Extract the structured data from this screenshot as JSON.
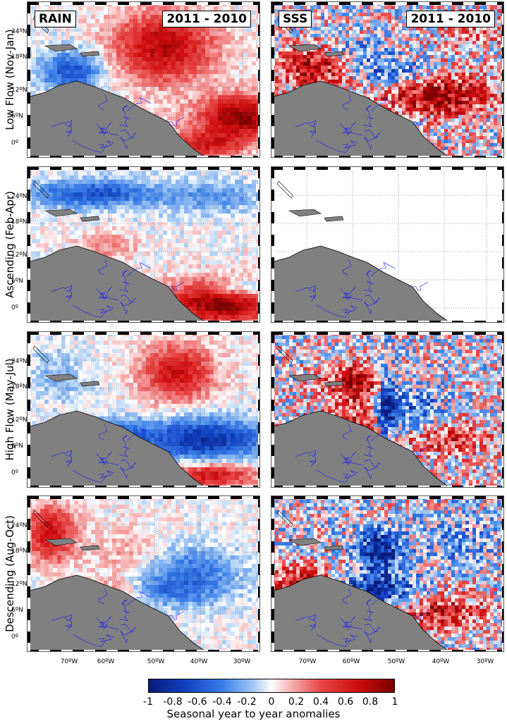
{
  "panel_labels": {
    "rain": "RAIN",
    "sss": "SSS",
    "years": "2011 - 2010"
  },
  "rows": [
    {
      "label": "Low Flow (Nov-Jan)"
    },
    {
      "label": "Ascending (Feb-Apr)"
    },
    {
      "label": "High Flow (May-Jul)"
    },
    {
      "label": "Descending (Aug-Oct)"
    }
  ],
  "latitude_labels": [
    "24ºN",
    "18ºN",
    "12ºN",
    "6ºN",
    "0º"
  ],
  "longitude_labels": [
    "70ºW",
    "60ºW",
    "50ºW",
    "40ºW",
    "30ºW"
  ],
  "colorbar": {
    "ticks": [
      "-1",
      "-0.8",
      "-0.6",
      "-0.4",
      "-0.2",
      "0",
      "0.2",
      "0.4",
      "0.6",
      "0.8",
      "1"
    ],
    "title": "Seasonal year to year anomalies",
    "colors": {
      "min": "#0a1a7a",
      "mid": "#ffffff",
      "max": "#7a0000"
    }
  },
  "colors": {
    "land": "#808080",
    "rivers": "#1a1aff",
    "frame": "#000000"
  }
}
